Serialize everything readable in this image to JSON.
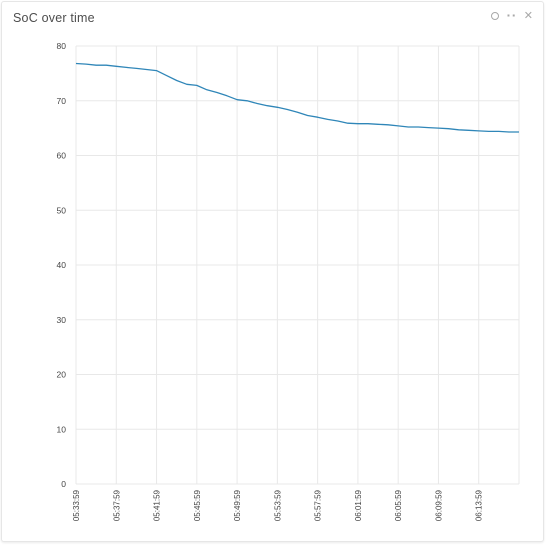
{
  "widget": {
    "title": "SoC over time",
    "icons": [
      "settings-circle-icon",
      "more-dots-icon",
      "close-icon"
    ]
  },
  "chart_data": {
    "type": "line",
    "title": "SoC over time",
    "xlabel": "",
    "ylabel": "",
    "ylim": [
      0,
      80
    ],
    "yticks": [
      0,
      10,
      20,
      30,
      40,
      50,
      60,
      70,
      80
    ],
    "xticks": [
      "05:33:59",
      "05:37:59",
      "05:41:59",
      "05:45:59",
      "05:49:59",
      "05:53:59",
      "05:57:59",
      "06:01:59",
      "06:05:59",
      "06:09:59",
      "06:13:59"
    ],
    "x_start": "05:33:59",
    "x_end": "06:17:59",
    "grid": true,
    "line_color": "#2f86b8",
    "series": [
      {
        "x": [
          "05:33:59",
          "05:34:59",
          "05:35:59",
          "05:36:59",
          "05:37:59",
          "05:38:59",
          "05:39:59",
          "05:40:59",
          "05:41:59",
          "05:42:59",
          "05:43:59",
          "05:44:59",
          "05:45:59",
          "05:46:59",
          "05:47:59",
          "05:48:59",
          "05:49:59",
          "05:50:59",
          "05:51:59",
          "05:52:59",
          "05:53:59",
          "05:54:59",
          "05:55:59",
          "05:56:59",
          "05:57:59",
          "05:58:59",
          "05:59:59",
          "06:00:59",
          "06:01:59",
          "06:02:59",
          "06:03:59",
          "06:04:59",
          "06:05:59",
          "06:06:59",
          "06:07:59",
          "06:08:59",
          "06:09:59",
          "06:10:59",
          "06:11:59",
          "06:12:59",
          "06:13:59",
          "06:14:59",
          "06:15:59",
          "06:16:59",
          "06:17:59"
        ],
        "values": [
          76.8,
          76.7,
          76.5,
          76.5,
          76.3,
          76.1,
          75.9,
          75.7,
          75.5,
          74.6,
          73.7,
          73.0,
          72.8,
          72.0,
          71.5,
          70.9,
          70.2,
          70.0,
          69.5,
          69.1,
          68.8,
          68.4,
          67.9,
          67.3,
          67.0,
          66.6,
          66.3,
          65.9,
          65.8,
          65.8,
          65.7,
          65.6,
          65.4,
          65.2,
          65.2,
          65.1,
          65.0,
          64.9,
          64.7,
          64.6,
          64.5,
          64.4,
          64.4,
          64.3,
          64.3
        ]
      }
    ]
  }
}
